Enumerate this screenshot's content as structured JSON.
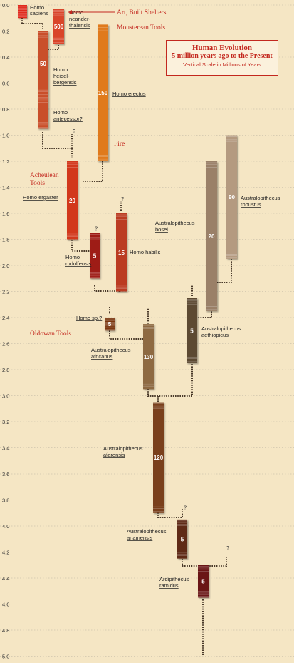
{
  "title": "Human Evolution",
  "subtitle": "5 million years ago to the Present",
  "scale_note": "Vertical Scale in Millions of Years",
  "chart_data": {
    "type": "range-bar timeline",
    "y_axis": {
      "unit": "Millions of Years",
      "range": [
        0.0,
        5.0
      ],
      "ticks": [
        "0.0",
        "0.2",
        "0.4",
        "0.6",
        "0.8",
        "1.0",
        "1.2",
        "1.4",
        "1.6",
        "1.8",
        "2.0",
        "2.2",
        "2.4",
        "2.6",
        "2.8",
        "3.0",
        "3.2",
        "3.4",
        "3.6",
        "3.8",
        "4.0",
        "4.2",
        "4.4",
        "4.6",
        "4.8",
        "5.0"
      ]
    },
    "species": [
      {
        "id": "sapiens",
        "name": [
          "Homo",
          "sapiens"
        ],
        "start": 0.0,
        "end": 0.1,
        "value": "",
        "color": "#e02a1c"
      },
      {
        "id": "neanderthalensis",
        "name": [
          "Homo",
          "neander-",
          "thalensis"
        ],
        "start": 0.03,
        "end": 0.3,
        "value": "500",
        "color": "#d9442a"
      },
      {
        "id": "heidelbergensis",
        "name": [
          "Homo",
          "heidel-",
          "bergensis"
        ],
        "start": 0.2,
        "end": 0.7,
        "value": "50",
        "color": "#c94f2b"
      },
      {
        "id": "antecessor",
        "name": [
          "Homo",
          "antecessor?"
        ],
        "start": 0.7,
        "end": 0.95,
        "value": "",
        "color": "#c94f2b"
      },
      {
        "id": "erectus",
        "name": [
          "Homo erectus"
        ],
        "start": 0.15,
        "end": 1.2,
        "value": "150",
        "color": "#e07a1c"
      },
      {
        "id": "ergaster",
        "name": [
          "Homo ergaster"
        ],
        "start": 1.2,
        "end": 1.8,
        "value": "20",
        "color": "#d2381c"
      },
      {
        "id": "rudolfensis",
        "name": [
          "Homo",
          "rudolfensis"
        ],
        "start": 1.75,
        "end": 2.1,
        "value": "5",
        "color": "#9e1f12"
      },
      {
        "id": "habilis",
        "name": [
          "Homo habilis"
        ],
        "start": 1.6,
        "end": 2.2,
        "value": "15",
        "color": "#bb3a20"
      },
      {
        "id": "sp",
        "name": [
          "Homo sp.?"
        ],
        "start": 2.4,
        "end": 2.5,
        "value": "5",
        "color": "#7a3410"
      },
      {
        "id": "africanus",
        "name": [
          "Australopithecus",
          "africanus"
        ],
        "start": 2.45,
        "end": 2.95,
        "value": "130",
        "color": "#8e6a42"
      },
      {
        "id": "aethiopicus",
        "name": [
          "Australopithecus",
          "aethiopicus"
        ],
        "start": 2.25,
        "end": 2.75,
        "value": "5",
        "color": "#5c4a30"
      },
      {
        "id": "boisei",
        "name": [
          "Australopithecus",
          "bosei"
        ],
        "start": 1.2,
        "end": 2.35,
        "value": "20",
        "color": "#9a8068"
      },
      {
        "id": "robustus",
        "name": [
          "Australopithecus",
          "robustus"
        ],
        "start": 1.0,
        "end": 1.95,
        "value": "90",
        "color": "#b49a80"
      },
      {
        "id": "afarensis",
        "name": [
          "Australopithecus",
          "afarensis"
        ],
        "start": 3.05,
        "end": 3.9,
        "value": "120",
        "color": "#7a3f1a"
      },
      {
        "id": "anamensis",
        "name": [
          "Australopithecus",
          "anamensis"
        ],
        "start": 3.95,
        "end": 4.25,
        "value": "5",
        "color": "#5e2a12"
      },
      {
        "id": "ramidus",
        "name": [
          "Ardipithecus",
          "ramidus"
        ],
        "start": 4.3,
        "end": 4.55,
        "value": "5",
        "color": "#6a1414"
      }
    ],
    "question_marks": [
      {
        "y": 0.98,
        "x": 102
      },
      {
        "y": 1.73,
        "x": 133
      },
      {
        "y": 1.5,
        "x": 170
      },
      {
        "y": 3.87,
        "x": 258
      },
      {
        "y": 4.18,
        "x": 318
      }
    ],
    "tool_annotations": [
      {
        "label": "Art, Built Shelters",
        "y": 0.0
      },
      {
        "label": "Mousterean Tools",
        "y": 0.12
      },
      {
        "label": "Fire",
        "y": 1.05
      },
      {
        "label": "Acheulean",
        "y": 1.25
      },
      {
        "label": "Tools",
        "y": 1.35
      },
      {
        "label": "Oldowan Tools",
        "y": 2.55
      }
    ]
  }
}
